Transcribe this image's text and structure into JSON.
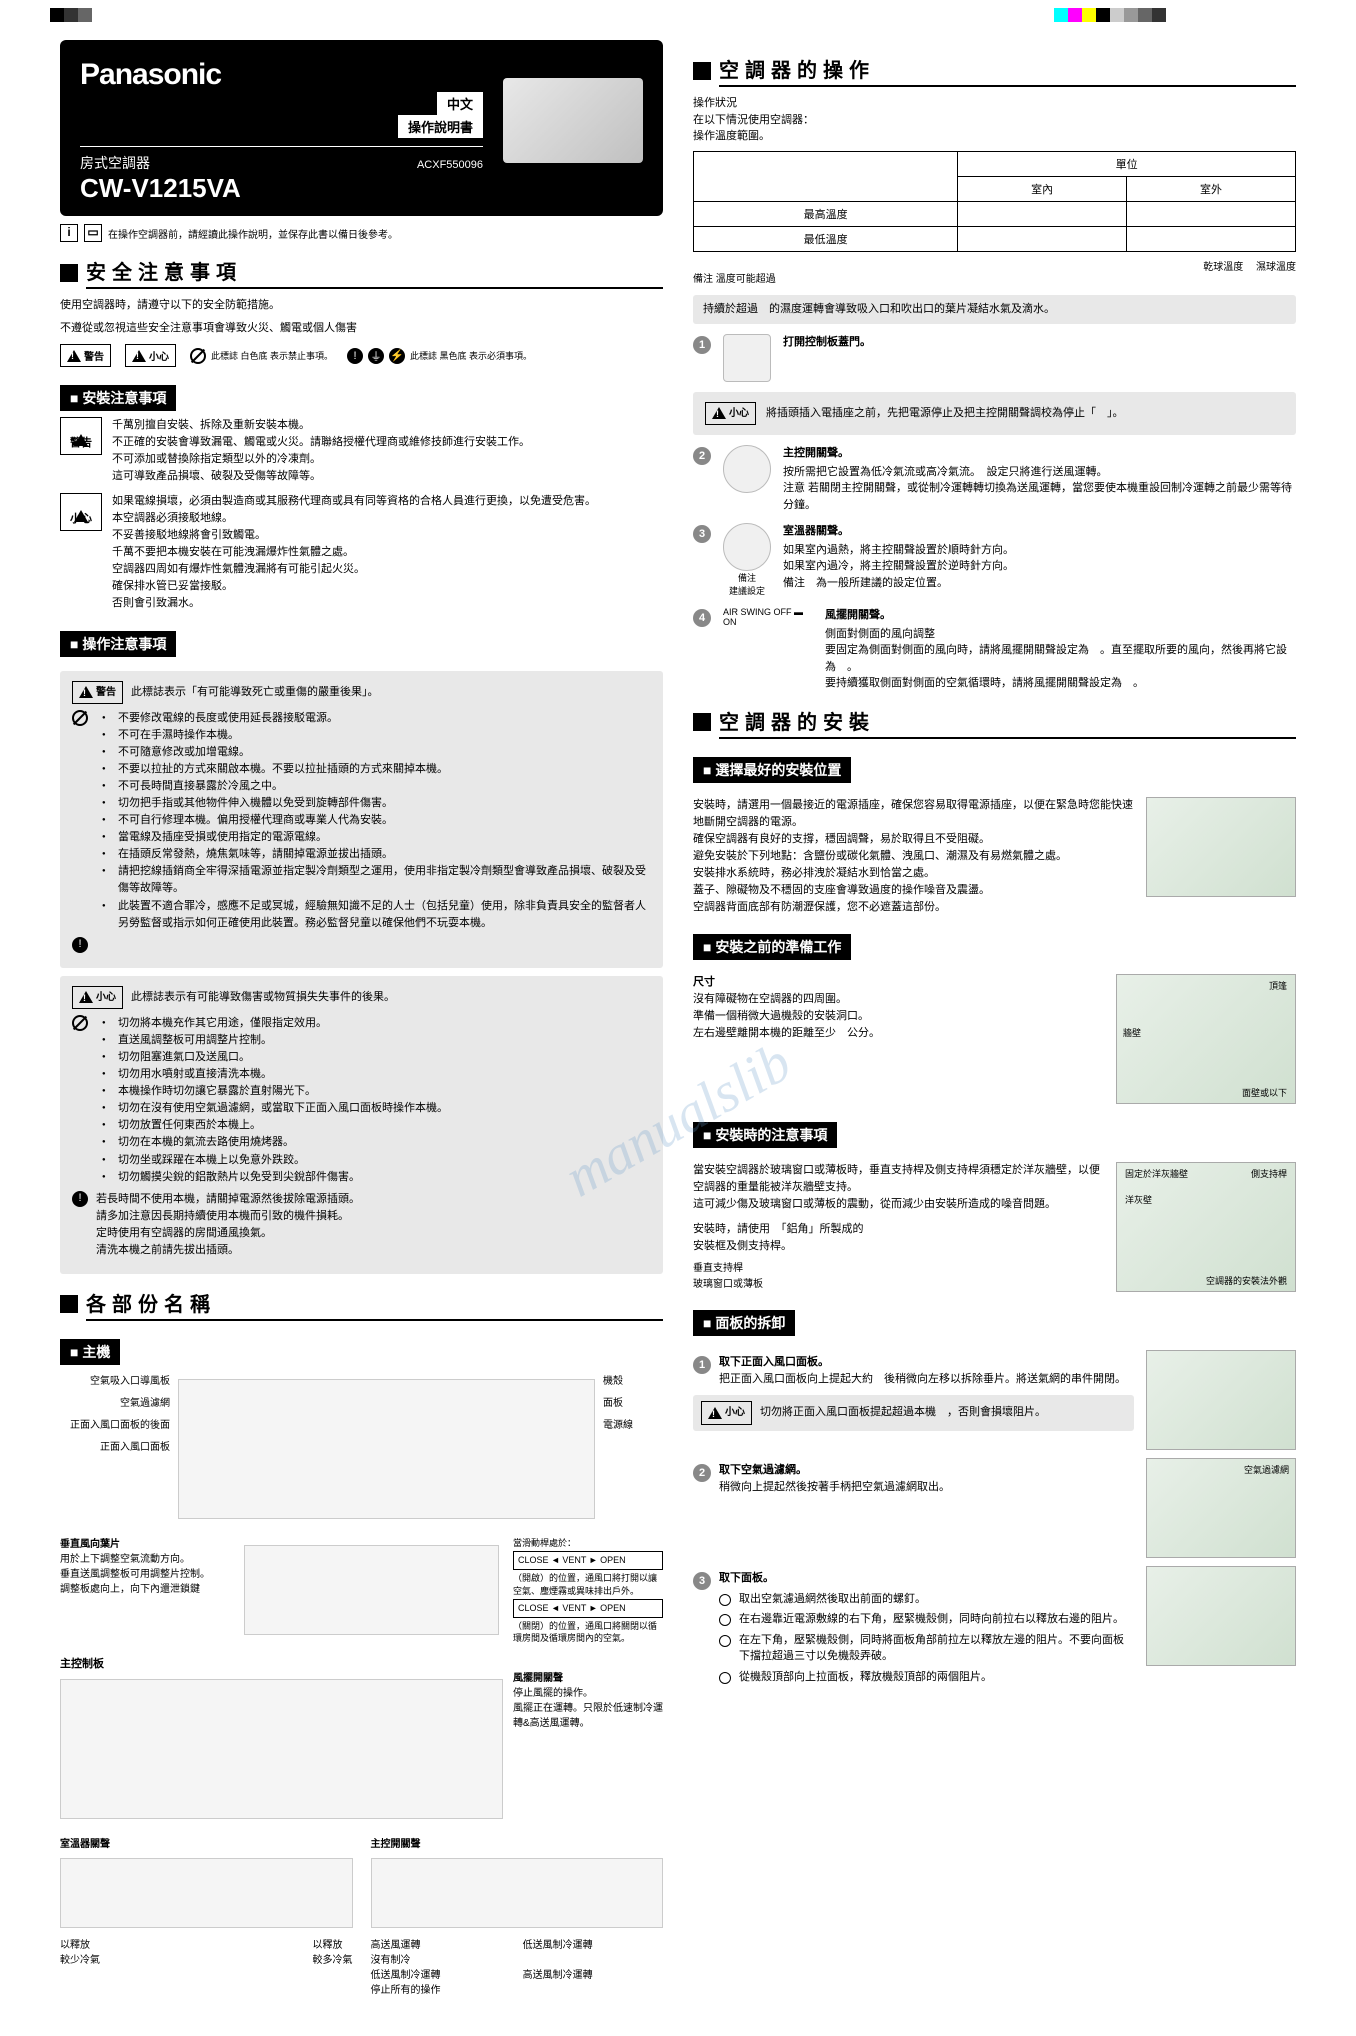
{
  "brand": "Panasonic",
  "lang1": "中文",
  "lang2": "操作說明書",
  "product_type": "房式空調器",
  "model": "CW-V1215VA",
  "product_code": "ACXF550096",
  "pre_note": "在操作空調器前，請經讀此操作說明，並保存此書以備日後參考。",
  "safety": {
    "title": "安全注意事項",
    "intro1": "使用空調器時，請遵守以下的安全防範措施。",
    "intro2": "不遵從或忽視這些安全注意事項會導致火災、觸電或個人傷害",
    "legend_a": "此標誌 白色底 表示禁止事項。",
    "legend_b": "此標誌 黑色底 表示必須事項。",
    "install_title": "安裝注意事項",
    "warn_label": "警告",
    "caution_label": "小心",
    "install_warn": "千萬別擅自安裝、拆除及重新安裝本機。\n不正確的安裝會導致漏電、觸電或火災。請聯絡授權代理商或維修技師進行安裝工作。\n不可添加或替換除指定類型以外的冷凍劑。\n這可導致產品損壞、破裂及受傷等故障等。",
    "install_caution": "如果電線損壞，必須由製造商或其服務代理商或具有同等資格的合格人員進行更換，以免遭受危害。\n本空調器必須接駁地線。\n不妥善接駁地線將會引致觸電。\n千萬不要把本機安裝在可能洩漏爆炸性氣體之處。\n空調器四周如有爆炸性氣體洩漏將有可能引起火災。\n確保排水管已妥當接駁。\n否則會引致漏水。",
    "op_title": "操作注意事項",
    "op_warn_head": "此標誌表示「有可能導致死亡或重傷的嚴重後果」。",
    "op_warn_items": [
      "不要修改電線的長度或使用延長器接駁電源。",
      "不可在手濕時操作本機。",
      "不可隨意修改或加增電線。",
      "不要以拉扯的方式來關啟本機。不要以拉扯插頭的方式來關掉本機。",
      "不可長時間直接暴露於冷風之中。",
      "切勿把手指或其他物件伸入機體以免受到旋轉部件傷害。",
      "不可自行修理本機。偏用授權代理商或專業人代為安裝。",
      "當電線及插座受損或使用指定的電源電線。",
      "在插頭反常發熱，燒焦氣味等，請關掉電源並拔出插頭。",
      "請把挖線插銷商全牢得深插電源並指定製冷劑類型之運用，使用非指定製冷劑類型會導致產品損壞、破裂及受傷等故障等。",
      "此裝置不適合罪冷，感應不足或冥城，經驗無知識不足的人士（包括兒童）使用，除非負責具安全的監督者人另勞監督或指示如何正確使用此裝置。務必監督兒童以確保他們不玩耍本機。"
    ],
    "op_caution_head": "此標誌表示有可能導致傷害或物質損失失事件的後果。",
    "op_caution_items": [
      "切勿將本機充作其它用途，僅限指定效用。",
      "直送風調整板可用調整片控制。",
      "切勿阻塞進氣口及送風口。",
      "切勿用水噴射或直接清洗本機。",
      "本機操作時切勿讓它暴露於直射陽光下。",
      "切勿在沒有使用空氣過濾網，或當取下正面入風口面板時操作本機。",
      "切勿放置任何東西於本機上。",
      "切勿在本機的氣流去路使用燒烤器。",
      "切勿坐或踩躍在本機上以免意外跌跤。",
      "切勿觸摸尖銳的鋁散熱片以免受到尖銳部件傷害。"
    ],
    "op_caution_notes": "若長時間不使用本機，請關掉電源然後拔除電源插頭。\n請多加注意因長期持續使用本機而引致的機件損耗。\n定時使用有空調器的房間通風換氣。\n清洗本機之前請先拔出插頭。"
  },
  "parts": {
    "title": "各部份名稱",
    "main_unit": "主機",
    "labels": {
      "air_inlet": "空氣吸入口導風板",
      "air_filter": "空氣過濾網",
      "filter_pos": "正面入風口面板的後面",
      "front_panel": "正面入風口面板",
      "cabinet": "機殼",
      "side_panel": "面板",
      "power_cord": "電源線"
    },
    "vane_title": "垂直風向葉片",
    "vane_desc": "用於上下調整空氣流動方向。\n垂直送風調整板可用調整片控制。\n調整板處向上，向下內還泄鎖鍵",
    "slider_at": "當滑動桿處於：",
    "slider_close": "CLOSE ◄ VENT ► OPEN",
    "slider_open_desc": "（開啟）的位置，通風口將打開以讓空氣、塵煙霧或異味排出戶外。",
    "slider_close_desc": "（關閉）的位置，通風口將關閉以循環房間及循環房間內的空氣。",
    "control_panel": "主控制板",
    "thermostat": "室溫器關聲",
    "thermo_cool": "以釋放\n較少冷氣",
    "thermo_warm": "以釋放\n較多冷氣",
    "main_ctrl": "主控開關聲",
    "fan_swing": "風擺開關聲",
    "fan_swing_desc": "停止風擺的操作。\n風擺正在運轉。只限於低速制冷運轉&高送風運轉。",
    "hi_fan": "高送風運轉\n沒有制冷",
    "lo_fan": "低送風制冷運轉\n停止所有的操作",
    "lo_cool": "低送風制冷運轉",
    "hi_cool": "高送風制冷運轉"
  },
  "operation": {
    "title": "空調器的操作",
    "intro": "操作狀況\n在以下情況使用空調器：\n操作溫度範圍。",
    "table": {
      "unit": "單位",
      "indoor": "室內",
      "outdoor": "室外",
      "max_temp": "最高溫度",
      "min_temp": "最低溫度",
      "dry_bulb": "乾球溫度",
      "wet_bulb": "濕球溫度"
    },
    "note": "備注 溫度可能超過",
    "warning_box": "持續於超過　的濕度運轉會導致吸入口和吹出口的葉片凝結水氣及滴水。",
    "step1_title": "打開控制板蓋門。",
    "caution_plug": "將插頭插入電插座之前，先把電源停止及把主控開關聲調校為停止「　」。",
    "step2_title": "主控開關聲。",
    "step2_desc": "按所需把它設置為低冷氣流或高冷氣流。　設定只將進行送風運轉。\n注意 若關閉主控開關聲，或從制冷運轉轉切換為送風運轉，當您要使本機重設回制冷運轉之前最少需等待　分鐘。",
    "step3_title": "室溫器關聲。",
    "step3_sub": "備注\n建議設定",
    "step3_desc": "如果室內過熱，將主控關聲設置於順時針方向。\n如果室內過冷，將主控關聲設置於逆時針方向。\n備注　為一般所建議的設定位置。",
    "step4_label": "AIR SWING  OFF ▬ ON",
    "step4_title": "風擺開關聲。",
    "step4_desc": "側面對側面的風向調整\n要固定為側面對側面的風向時，請將風擺開關聲設定為　。直至擺取所要的風向，然後再將它設為　。\n要持續獲取側面對側面的空氣循環時，請將風擺開關聲設定為　。"
  },
  "install": {
    "title": "空調器的安裝",
    "pos_title": "選擇最好的安裝位置",
    "pos_desc": "安裝時，請選用一個最接近的電源插座，確保您容易取得電源插座，以便在緊急時您能快速地斷開空調器的電源。\n確保空調器有良好的支撐，穩固調聲，易於取得且不受阻礙。\n避免安裝於下列地點：含鹽份或碳化氣體、洩風口、潮濕及有易燃氣體之處。\n安裝排水系統時，務必排洩於凝結水到恰當之處。\n蓋子、隙礙物及不穩固的支座會導致過度的操作噪音及震盪。\n空調器背面底部有防潮瀝保護，您不必遮蓋這部份。",
    "prep_title": "安裝之前的準備工作",
    "prep_size": "尺寸",
    "prep_desc": "沒有障礙物在空調器的四周圍。\n準備一個稍微大過機殼的安裝洞口。\n左右邊壁離開本機的距離至少　公分。",
    "prep_labels": {
      "top": "頂篷",
      "wall": "牆壁",
      "cm": "公分",
      "below": "面壁或以下"
    },
    "notes_title": "安裝時的注意事項",
    "notes_desc": "當安裝空調器於玻璃窗口或薄板時，垂直支持桿及側支持桿須穩定於洋灰牆壁，以便空調器的重量能被洋灰牆壁支持。\n這可減少傷及玻璃窗口或薄板的震動，從而減少由安裝所造成的噪音問題。",
    "notes_desc2": "安裝時，請使用　「鋁角」所製成的\n安裝框及側支持桿。",
    "notes_labels": {
      "fix_wall": "固定於洋灰牆壁",
      "side_bar": "側支持桿",
      "cement": "洋灰壁",
      "vert_bar": "垂直支持桿",
      "glass": "玻璃窗口或薄板",
      "view": "空調器的安裝法外觀"
    },
    "remove_title": "面板的拆卸",
    "remove1_title": "取下正面入風口面板。",
    "remove1_desc": "把正面入風口面板向上提起大約　後稍微向左移以拆除垂片。將送氣網的串件開閉。",
    "remove1_caution": "切勿將正面入風口面板提起超過本機　，否則會損壞阻片。",
    "remove2_title": "取下空氣過濾網。",
    "remove2_desc": "稍微向上提起然後按著手柄把空氣過濾網取出。",
    "remove2_label": "空氣過濾網",
    "remove3_title": "取下面板。",
    "remove3_steps": [
      "取出空氣濾過網然後取出前面的螺釘。",
      "在右邊靠近電源敷線的右下角，壓緊機殼側，同時向前拉右以釋放右邊的阻片。",
      "在左下角，壓緊機殼側，同時將面板角部前拉左以釋放左邊的阻片。不要向面板下擋拉超過三寸以免機殼弄破。",
      "從機殼頂部向上拉面板，釋放機殼頂部的兩個阻片。"
    ]
  },
  "watermark": "manualslib"
}
